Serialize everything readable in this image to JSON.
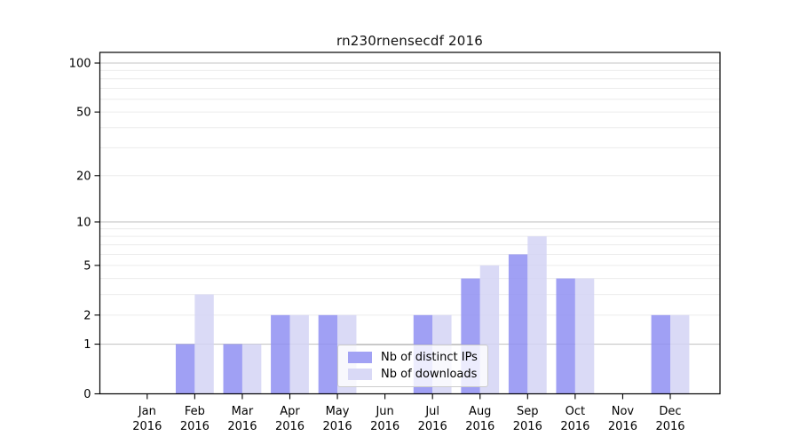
{
  "chart_data": {
    "type": "bar",
    "title": "rn230rnensecdf 2016",
    "categories": [
      "Jan 2016",
      "Feb 2016",
      "Mar 2016",
      "Apr 2016",
      "May 2016",
      "Jun 2016",
      "Jul 2016",
      "Aug 2016",
      "Sep 2016",
      "Oct 2016",
      "Nov 2016",
      "Dec 2016"
    ],
    "x_tick_line1": [
      "Jan",
      "Feb",
      "Mar",
      "Apr",
      "May",
      "Jun",
      "Jul",
      "Aug",
      "Sep",
      "Oct",
      "Nov",
      "Dec"
    ],
    "x_tick_line2": [
      "2016",
      "2016",
      "2016",
      "2016",
      "2016",
      "2016",
      "2016",
      "2016",
      "2016",
      "2016",
      "2016",
      "2016"
    ],
    "series": [
      {
        "name": "Nb of distinct IPs",
        "color": "#a2a2f4",
        "bar_fill": "#8f8ff2",
        "bar_opacity": 0.85,
        "values": [
          0,
          1,
          1,
          2,
          2,
          0,
          2,
          4,
          6,
          4,
          0,
          2
        ]
      },
      {
        "name": "Nb of downloads",
        "color": "#d9d9f6",
        "bar_fill": "#d3d3f5",
        "bar_opacity": 0.85,
        "values": [
          0,
          3,
          1,
          2,
          2,
          0,
          2,
          5,
          8,
          4,
          0,
          2
        ]
      }
    ],
    "y_axis": {
      "scale": "log1p",
      "ylim": [
        0,
        100
      ],
      "tick_labels": [
        0,
        1,
        2,
        5,
        10,
        20,
        50,
        100
      ],
      "major_gridlines": [
        1,
        10,
        100
      ],
      "minor_gridlines": [
        2,
        3,
        4,
        5,
        6,
        7,
        8,
        9,
        20,
        30,
        40,
        50,
        60,
        70,
        80,
        90
      ]
    },
    "grid": true,
    "legend": {
      "position": "lower center",
      "labels": [
        "Nb of distinct IPs",
        "Nb of downloads"
      ]
    },
    "style_colors": {
      "major_grid": "#c6c6c6",
      "minor_grid": "#ececec",
      "spine": "#000000",
      "tick_text": "#000000",
      "title_text": "#111111",
      "legend_border": "#cccccc"
    }
  }
}
